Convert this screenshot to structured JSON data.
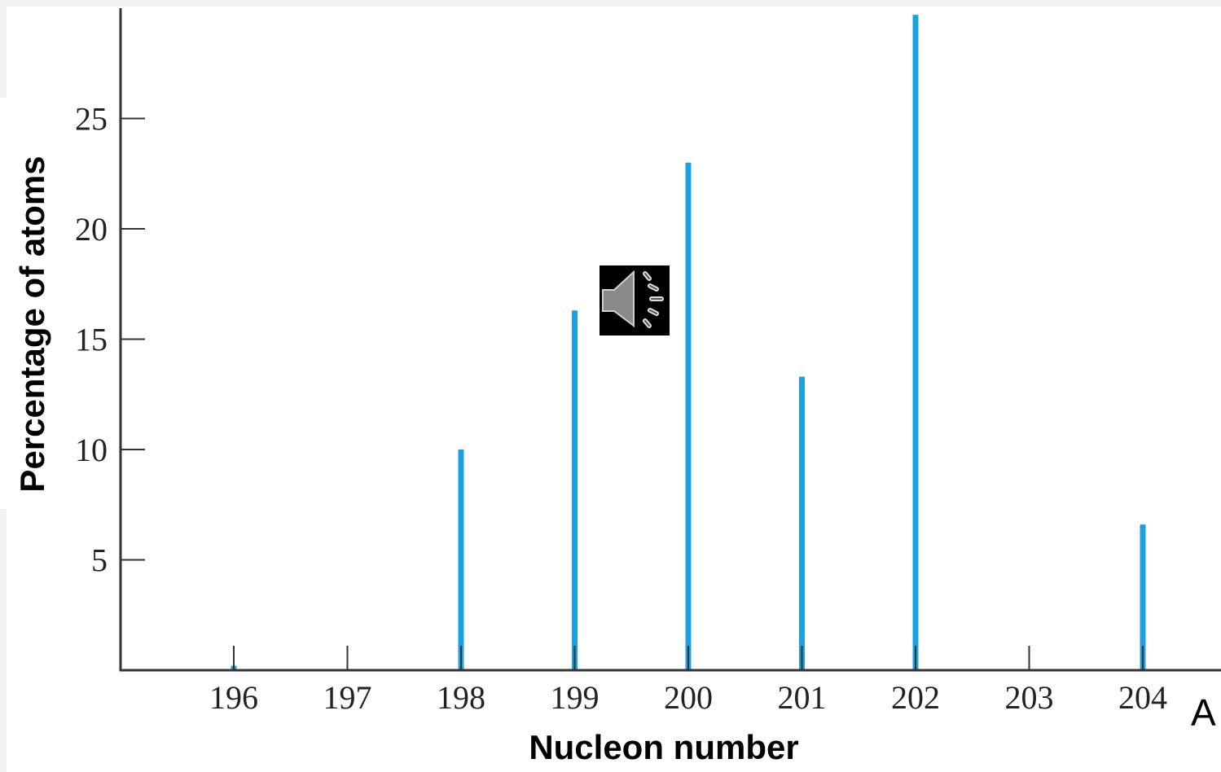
{
  "chart_data": {
    "type": "bar",
    "title": "",
    "xlabel": "Nucleon number",
    "ylabel": "Percentage of atoms",
    "categories": [
      "196",
      "197",
      "198",
      "199",
      "200",
      "201",
      "202",
      "203",
      "204"
    ],
    "x": [
      196,
      197,
      198,
      199,
      200,
      201,
      202,
      203,
      204
    ],
    "values": [
      0.2,
      0,
      10.0,
      16.3,
      23.0,
      13.3,
      29.7,
      0,
      6.6
    ],
    "yticks": [
      5,
      10,
      15,
      20,
      25
    ],
    "ylim": [
      0,
      30
    ],
    "xlim": [
      195,
      204.7
    ],
    "grid": false,
    "bar_color": "#1ba1e2"
  },
  "annotation": {
    "corner_label": "A"
  },
  "audio_icon": {
    "name": "speaker-icon"
  }
}
